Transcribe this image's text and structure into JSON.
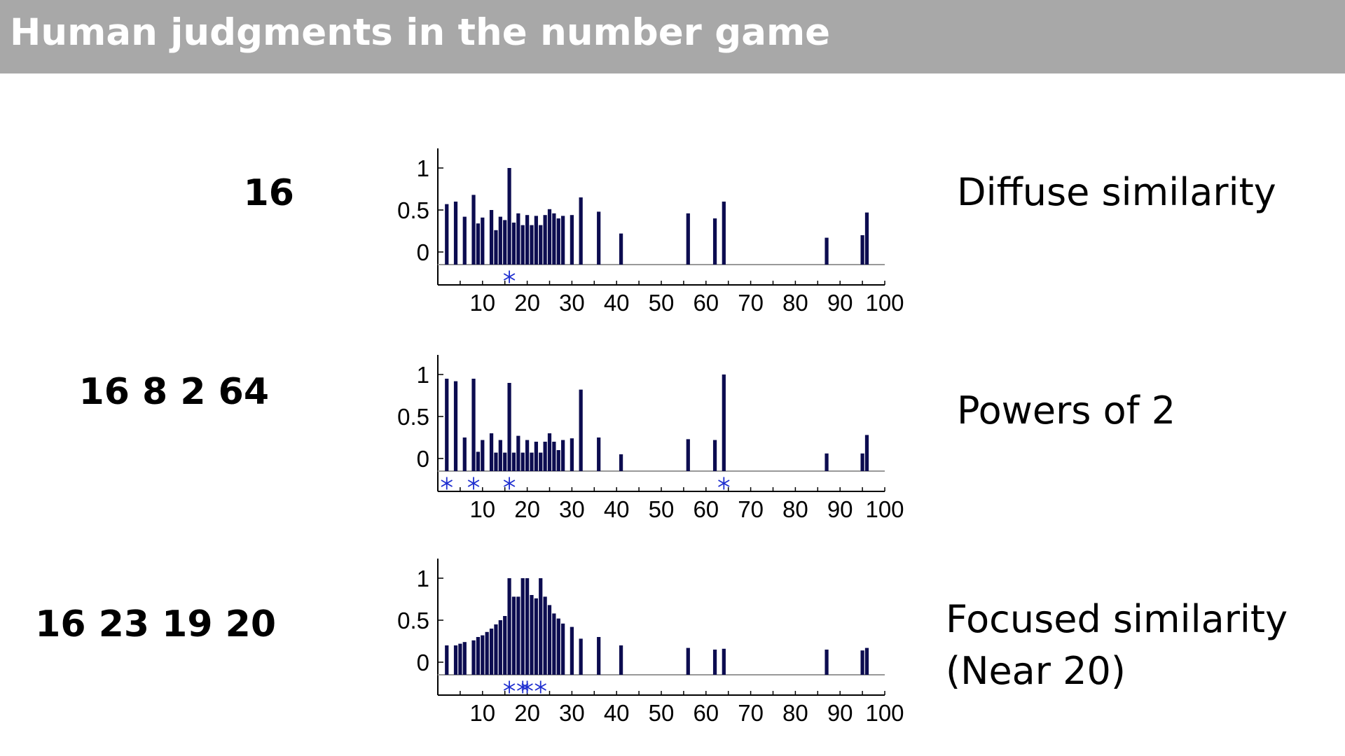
{
  "title": "Human judgments in the number game",
  "rows": [
    {
      "label": "16",
      "description": [
        "Diffuse similarity"
      ]
    },
    {
      "label": "16 8 2 64",
      "description": [
        "Powers of 2"
      ]
    },
    {
      "label": "16 23 19 20",
      "description": [
        "Focused similarity",
        "(Near 20)"
      ]
    }
  ],
  "colors": {
    "bar": "#0c0c50",
    "marker": "#1f2fd0",
    "title_bar": "#a8a8a8"
  },
  "chart_data": [
    {
      "type": "bar",
      "xlim": [
        0,
        100
      ],
      "ylim": [
        0,
        1
      ],
      "x_ticks": [
        10,
        20,
        30,
        40,
        50,
        60,
        70,
        80,
        90,
        100
      ],
      "y_ticks": [
        0,
        0.5,
        1
      ],
      "y_tick_labels": [
        "0",
        "0.5",
        "1"
      ],
      "examples": [
        16
      ],
      "bars": [
        {
          "x": 2,
          "y": 0.57
        },
        {
          "x": 4,
          "y": 0.6
        },
        {
          "x": 6,
          "y": 0.42
        },
        {
          "x": 8,
          "y": 0.68
        },
        {
          "x": 9,
          "y": 0.34
        },
        {
          "x": 10,
          "y": 0.41
        },
        {
          "x": 12,
          "y": 0.5
        },
        {
          "x": 13,
          "y": 0.26
        },
        {
          "x": 14,
          "y": 0.42
        },
        {
          "x": 15,
          "y": 0.38
        },
        {
          "x": 16,
          "y": 1.0
        },
        {
          "x": 17,
          "y": 0.35
        },
        {
          "x": 18,
          "y": 0.46
        },
        {
          "x": 19,
          "y": 0.32
        },
        {
          "x": 20,
          "y": 0.44
        },
        {
          "x": 21,
          "y": 0.32
        },
        {
          "x": 22,
          "y": 0.43
        },
        {
          "x": 23,
          "y": 0.32
        },
        {
          "x": 24,
          "y": 0.44
        },
        {
          "x": 25,
          "y": 0.51
        },
        {
          "x": 26,
          "y": 0.46
        },
        {
          "x": 27,
          "y": 0.4
        },
        {
          "x": 28,
          "y": 0.43
        },
        {
          "x": 30,
          "y": 0.44
        },
        {
          "x": 32,
          "y": 0.65
        },
        {
          "x": 36,
          "y": 0.48
        },
        {
          "x": 41,
          "y": 0.22
        },
        {
          "x": 56,
          "y": 0.46
        },
        {
          "x": 62,
          "y": 0.4
        },
        {
          "x": 64,
          "y": 0.6
        },
        {
          "x": 87,
          "y": 0.17
        },
        {
          "x": 95,
          "y": 0.2
        },
        {
          "x": 96,
          "y": 0.47
        }
      ]
    },
    {
      "type": "bar",
      "xlim": [
        0,
        100
      ],
      "ylim": [
        0,
        1
      ],
      "x_ticks": [
        10,
        20,
        30,
        40,
        50,
        60,
        70,
        80,
        90,
        100
      ],
      "y_ticks": [
        0,
        0.5,
        1
      ],
      "y_tick_labels": [
        "0",
        "0.5",
        "1"
      ],
      "examples": [
        2,
        8,
        16,
        64
      ],
      "bars": [
        {
          "x": 2,
          "y": 0.95
        },
        {
          "x": 4,
          "y": 0.92
        },
        {
          "x": 6,
          "y": 0.25
        },
        {
          "x": 8,
          "y": 0.95
        },
        {
          "x": 9,
          "y": 0.08
        },
        {
          "x": 10,
          "y": 0.22
        },
        {
          "x": 12,
          "y": 0.3
        },
        {
          "x": 13,
          "y": 0.07
        },
        {
          "x": 14,
          "y": 0.22
        },
        {
          "x": 15,
          "y": 0.07
        },
        {
          "x": 16,
          "y": 0.9
        },
        {
          "x": 17,
          "y": 0.07
        },
        {
          "x": 18,
          "y": 0.27
        },
        {
          "x": 19,
          "y": 0.07
        },
        {
          "x": 20,
          "y": 0.22
        },
        {
          "x": 21,
          "y": 0.07
        },
        {
          "x": 22,
          "y": 0.2
        },
        {
          "x": 23,
          "y": 0.07
        },
        {
          "x": 24,
          "y": 0.2
        },
        {
          "x": 25,
          "y": 0.3
        },
        {
          "x": 26,
          "y": 0.2
        },
        {
          "x": 27,
          "y": 0.1
        },
        {
          "x": 28,
          "y": 0.22
        },
        {
          "x": 30,
          "y": 0.24
        },
        {
          "x": 32,
          "y": 0.82
        },
        {
          "x": 36,
          "y": 0.25
        },
        {
          "x": 41,
          "y": 0.05
        },
        {
          "x": 56,
          "y": 0.23
        },
        {
          "x": 62,
          "y": 0.22
        },
        {
          "x": 64,
          "y": 1.0
        },
        {
          "x": 87,
          "y": 0.06
        },
        {
          "x": 95,
          "y": 0.06
        },
        {
          "x": 96,
          "y": 0.28
        }
      ]
    },
    {
      "type": "bar",
      "xlim": [
        0,
        100
      ],
      "ylim": [
        0,
        1
      ],
      "x_ticks": [
        10,
        20,
        30,
        40,
        50,
        60,
        70,
        80,
        90,
        100
      ],
      "y_ticks": [
        0,
        0.5,
        1
      ],
      "y_tick_labels": [
        "0",
        "0.5",
        "1"
      ],
      "examples": [
        16,
        19,
        20,
        23
      ],
      "bars": [
        {
          "x": 2,
          "y": 0.2
        },
        {
          "x": 4,
          "y": 0.2
        },
        {
          "x": 5,
          "y": 0.22
        },
        {
          "x": 6,
          "y": 0.24
        },
        {
          "x": 8,
          "y": 0.26
        },
        {
          "x": 9,
          "y": 0.3
        },
        {
          "x": 10,
          "y": 0.32
        },
        {
          "x": 11,
          "y": 0.36
        },
        {
          "x": 12,
          "y": 0.4
        },
        {
          "x": 13,
          "y": 0.45
        },
        {
          "x": 14,
          "y": 0.5
        },
        {
          "x": 15,
          "y": 0.55
        },
        {
          "x": 16,
          "y": 1.0
        },
        {
          "x": 17,
          "y": 0.78
        },
        {
          "x": 18,
          "y": 0.78
        },
        {
          "x": 19,
          "y": 1.0
        },
        {
          "x": 20,
          "y": 1.0
        },
        {
          "x": 21,
          "y": 0.8
        },
        {
          "x": 22,
          "y": 0.76
        },
        {
          "x": 23,
          "y": 1.0
        },
        {
          "x": 24,
          "y": 0.78
        },
        {
          "x": 25,
          "y": 0.68
        },
        {
          "x": 26,
          "y": 0.58
        },
        {
          "x": 27,
          "y": 0.52
        },
        {
          "x": 28,
          "y": 0.46
        },
        {
          "x": 30,
          "y": 0.42
        },
        {
          "x": 32,
          "y": 0.28
        },
        {
          "x": 36,
          "y": 0.3
        },
        {
          "x": 41,
          "y": 0.2
        },
        {
          "x": 56,
          "y": 0.17
        },
        {
          "x": 62,
          "y": 0.15
        },
        {
          "x": 64,
          "y": 0.16
        },
        {
          "x": 87,
          "y": 0.15
        },
        {
          "x": 95,
          "y": 0.14
        },
        {
          "x": 96,
          "y": 0.17
        }
      ]
    }
  ]
}
